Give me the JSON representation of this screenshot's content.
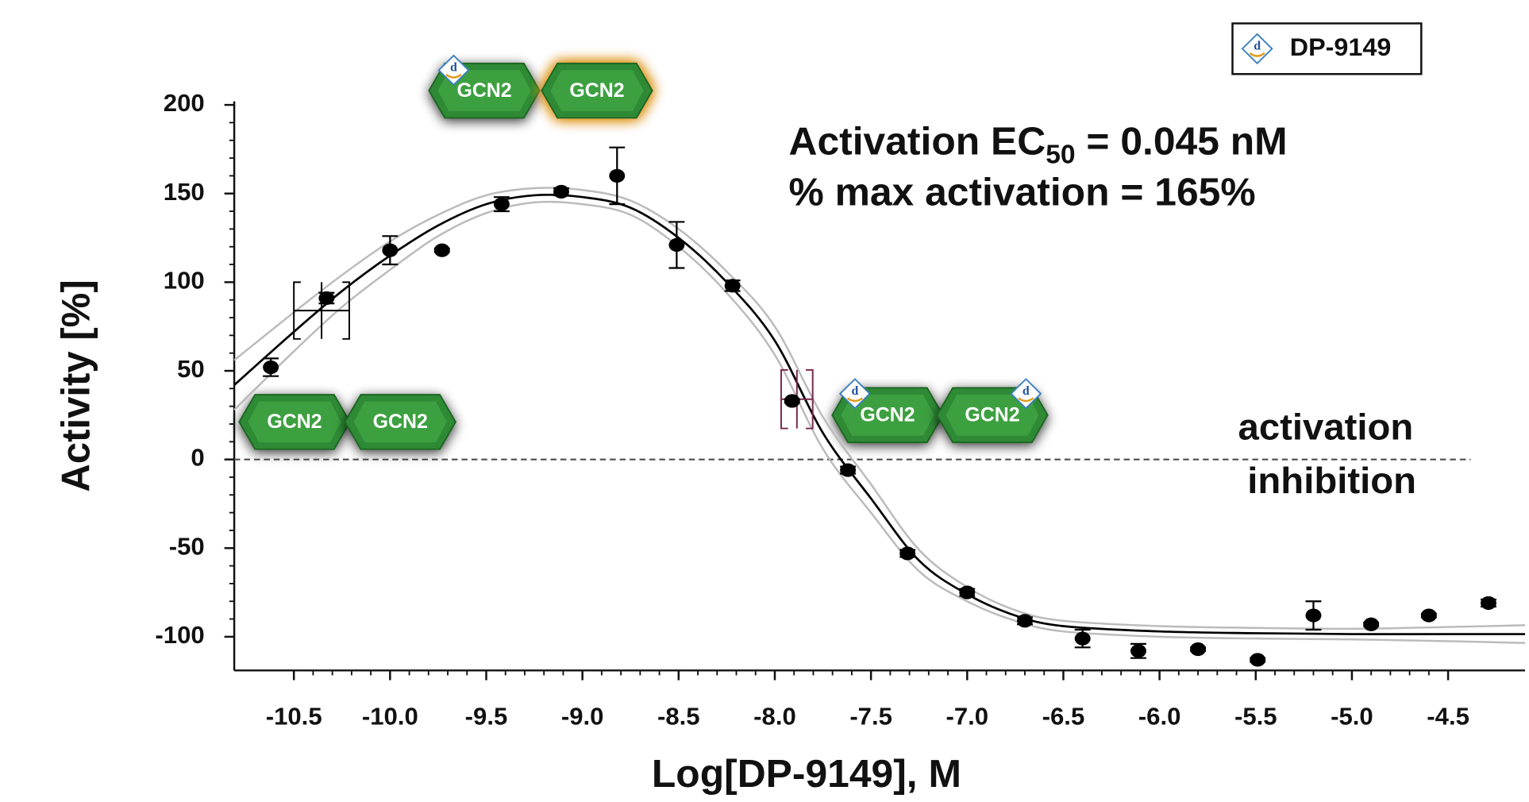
{
  "chart_data": {
    "type": "scatter",
    "x_label": "Log[DP-9149], M",
    "y_label": "Activity [%]",
    "xlim": [
      -10.81,
      -4.1
    ],
    "ylim": [
      -119,
      202
    ],
    "xticks": [
      -10.5,
      {
        "value": -10,
        "label": "-10.0"
      },
      -9.5,
      {
        "value": -9,
        "label": "-9.0"
      },
      -8.5,
      {
        "value": -8,
        "label": "-8.0"
      },
      -7.5,
      {
        "value": -7,
        "label": "-7.0"
      },
      -6.5,
      {
        "value": -6,
        "label": "-6.0"
      },
      -5.5,
      {
        "value": -5,
        "label": "-5.0"
      },
      -4.5
    ],
    "yticks": [
      -100,
      -50,
      0,
      50,
      100,
      150,
      200
    ],
    "legend": "upper right",
    "series": [
      {
        "name": "DP-9149",
        "color": "#000000",
        "x": [
          -10.62,
          -10.33,
          -10.0,
          -9.73,
          -9.42,
          -9.11,
          -8.82,
          -8.51,
          -8.22,
          -7.91,
          -7.62,
          -7.31,
          -7.0,
          -6.7,
          -6.4,
          -6.11,
          -5.8,
          -5.49,
          -5.2,
          -4.9,
          -4.6,
          -4.29
        ],
        "values": [
          52,
          91,
          118,
          118,
          144,
          151,
          160,
          121,
          98,
          33,
          -6,
          -53,
          -75,
          -91,
          -101,
          -108,
          -107,
          -113,
          -88,
          -93,
          -88,
          -81
        ],
        "errors": [
          5,
          3,
          8,
          1,
          4,
          2,
          16,
          13,
          3,
          1,
          2,
          2,
          2,
          2,
          5,
          4,
          1,
          1,
          8,
          1,
          1,
          2
        ]
      }
    ],
    "fit_lines": [
      {
        "color": "#000000",
        "x": [
          -10.81,
          -10.5,
          -10.25,
          -10,
          -9.75,
          -9.5,
          -9.25,
          -9,
          -8.75,
          -8.5,
          -8.25,
          -8,
          -7.75,
          -7.5,
          -7.25,
          -7,
          -6.75,
          -6.5,
          -6,
          -5.5,
          -5,
          -4.5,
          -4.1
        ],
        "values": [
          42,
          72,
          95,
          115,
          132,
          144,
          149,
          148,
          142,
          125,
          100,
          67,
          15,
          -22,
          -57,
          -76,
          -88,
          -94,
          -97,
          -98,
          -98.5,
          -98.5,
          -98.5
        ]
      },
      {
        "color": "#bbbbbb",
        "x": [
          -10.81,
          -10.5,
          -10.25,
          -10,
          -9.75,
          -9.5,
          -9.25,
          -9,
          -8.75,
          -8.5,
          -8.25,
          -8,
          -7.75,
          -7.5,
          -7.25,
          -7,
          -6.75,
          -6.5,
          -6,
          -5.5,
          -5,
          -4.5,
          -4.1
        ],
        "values": [
          56,
          83,
          104,
          123,
          138,
          149,
          153,
          152,
          146,
          130,
          106,
          75,
          24,
          -14,
          -51,
          -72,
          -85,
          -91,
          -94,
          -95,
          -95.5,
          -94.5,
          -93.5
        ]
      },
      {
        "color": "#bbbbbb",
        "x": [
          -10.81,
          -10.5,
          -10.25,
          -10,
          -9.75,
          -9.5,
          -9.25,
          -9,
          -8.75,
          -8.5,
          -8.25,
          -8,
          -7.75,
          -7.5,
          -7.25,
          -7,
          -6.75,
          -6.5,
          -6,
          -5.5,
          -5,
          -4.5,
          -4.1
        ],
        "values": [
          28,
          61,
          86,
          107,
          126,
          139,
          145,
          144,
          138,
          120,
          94,
          59,
          6,
          -30,
          -63,
          -80,
          -91,
          -97,
          -100,
          -101,
          -101.5,
          -102.5,
          -103.5
        ]
      }
    ],
    "crosshairs": [
      {
        "color": "#000000",
        "x": -10.356,
        "xerr": 0.144,
        "y": 84,
        "yerr": 16
      },
      {
        "color": "#7a2a4e",
        "x": -7.885,
        "xerr": 0.082,
        "y": 34,
        "yerr": 16.5
      }
    ],
    "hline": 0,
    "annotations": {
      "ec_prefix": "Activation EC",
      "ec_sub": "50",
      "ec_suffix": " = 0.045 nM",
      "max_activation": "% max activation = 165%",
      "above": "activation",
      "below": "inhibition"
    },
    "icons": {
      "label": "GCN2",
      "badge": "d"
    }
  }
}
